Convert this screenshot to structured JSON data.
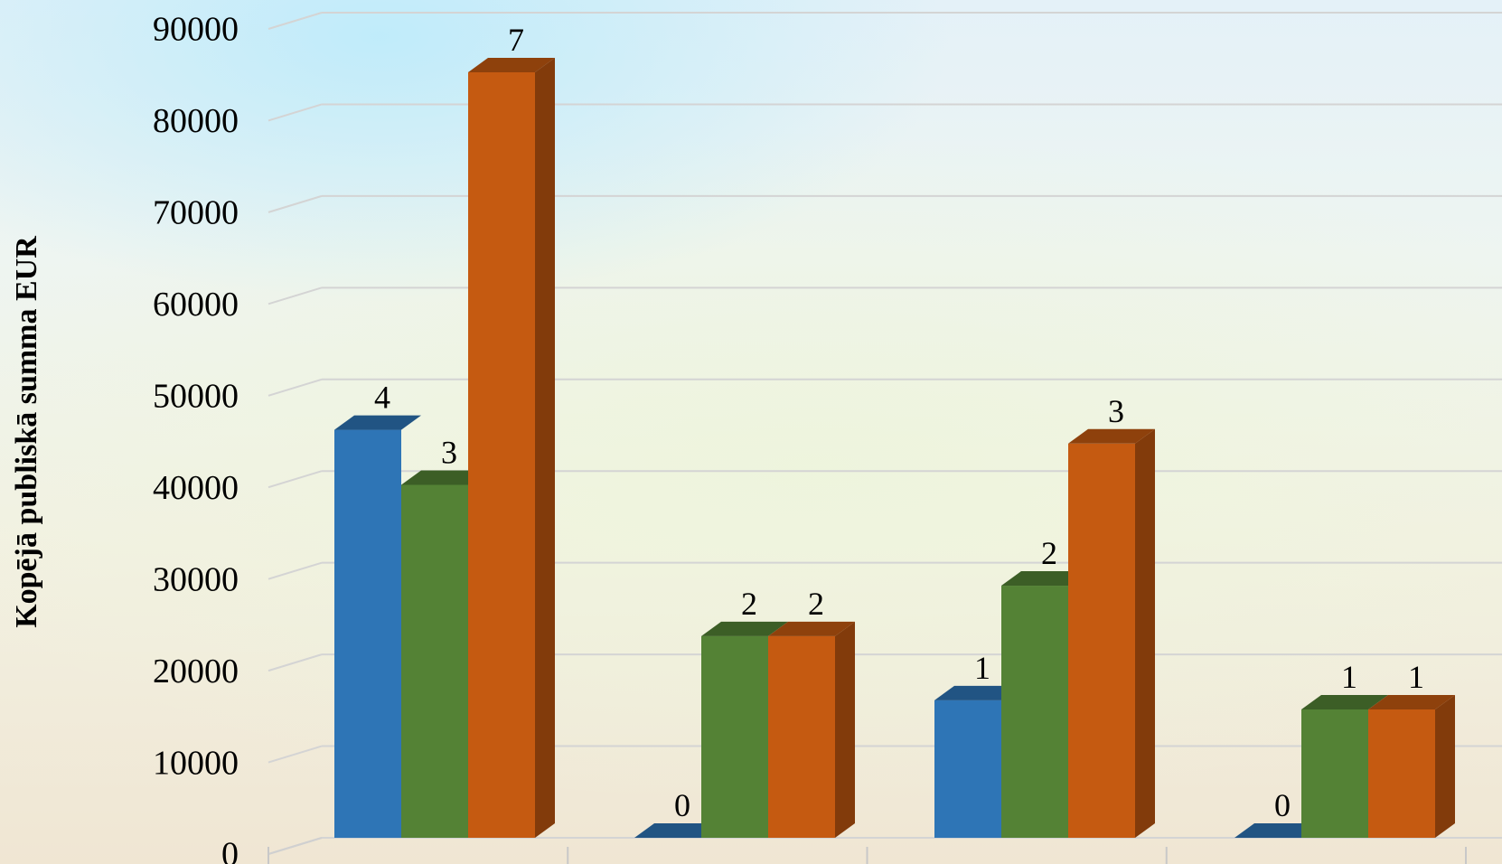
{
  "chart_data": {
    "type": "bar",
    "style": "3d-clustered-column",
    "ylabel": "Kopējā publiskā summa EUR",
    "ylim": [
      0,
      90000
    ],
    "yticks": [
      "0",
      "10000",
      "20000",
      "30000",
      "40000",
      "50000",
      "60000",
      "70000",
      "80000",
      "90000"
    ],
    "grid": true,
    "categories": [
      "",
      "",
      "",
      ""
    ],
    "series": [
      {
        "color": "#2e75b6",
        "values": [
          44500,
          0,
          15000,
          0
        ],
        "labels": [
          "4",
          "0",
          "1",
          "0"
        ]
      },
      {
        "color": "#548235",
        "values": [
          38500,
          22000,
          27500,
          14000
        ],
        "labels": [
          "3",
          "2",
          "2",
          "1"
        ]
      },
      {
        "color": "#c55a11",
        "values": [
          83500,
          22000,
          43000,
          14000
        ],
        "labels": [
          "7",
          "2",
          "3",
          "1"
        ]
      }
    ]
  }
}
